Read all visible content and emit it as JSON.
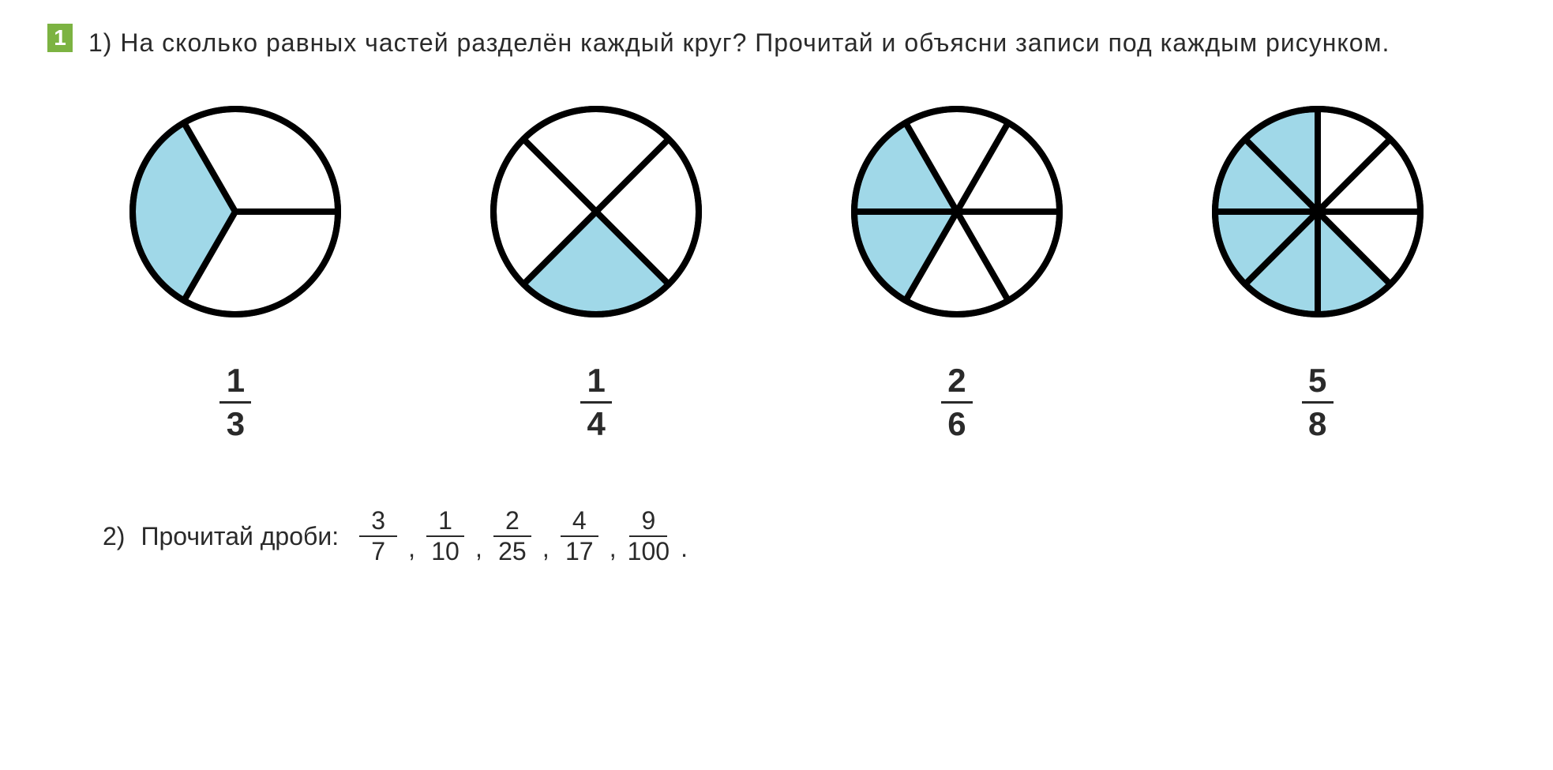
{
  "exercise": {
    "number": "1",
    "part1_label": "1)",
    "part1_text": "На сколько равных частей разделён каждый круг? Прочитай и объясни записи под каждым рисунком.",
    "part2_label": "2)",
    "part2_text": "Прочитай дроби:"
  },
  "colors": {
    "badge_bg": "#7cb342",
    "badge_text": "#ffffff",
    "text": "#2a2a2a",
    "circle_stroke": "#000000",
    "circle_fill_shaded": "#a0d8e8",
    "circle_fill_empty": "#ffffff",
    "background": "#ffffff"
  },
  "circles": [
    {
      "type": "pie",
      "total_slices": 3,
      "shaded_slices": 1,
      "start_angle": 90,
      "shaded_indices": [
        1
      ],
      "fraction": {
        "numerator": "1",
        "denominator": "3"
      },
      "stroke_width": 8,
      "radius": 130
    },
    {
      "type": "pie",
      "total_slices": 4,
      "shaded_slices": 1,
      "start_angle": 45,
      "shaded_indices": [
        1
      ],
      "fraction": {
        "numerator": "1",
        "denominator": "4"
      },
      "stroke_width": 8,
      "radius": 130
    },
    {
      "type": "pie",
      "total_slices": 6,
      "shaded_slices": 2,
      "start_angle": 90,
      "shaded_indices": [
        2,
        3
      ],
      "fraction": {
        "numerator": "2",
        "denominator": "6"
      },
      "stroke_width": 8,
      "radius": 130
    },
    {
      "type": "pie",
      "total_slices": 8,
      "shaded_slices": 5,
      "start_angle": 90,
      "shaded_indices": [
        1,
        2,
        3,
        4,
        5
      ],
      "fraction": {
        "numerator": "5",
        "denominator": "8"
      },
      "stroke_width": 8,
      "radius": 130
    }
  ],
  "part2_fractions": [
    {
      "numerator": "3",
      "denominator": "7"
    },
    {
      "numerator": "1",
      "denominator": "10"
    },
    {
      "numerator": "2",
      "denominator": "25"
    },
    {
      "numerator": "4",
      "denominator": "17"
    },
    {
      "numerator": "9",
      "denominator": "100"
    }
  ],
  "typography": {
    "body_fontsize": 32,
    "fraction_fontsize": 42,
    "badge_fontsize": 28
  }
}
